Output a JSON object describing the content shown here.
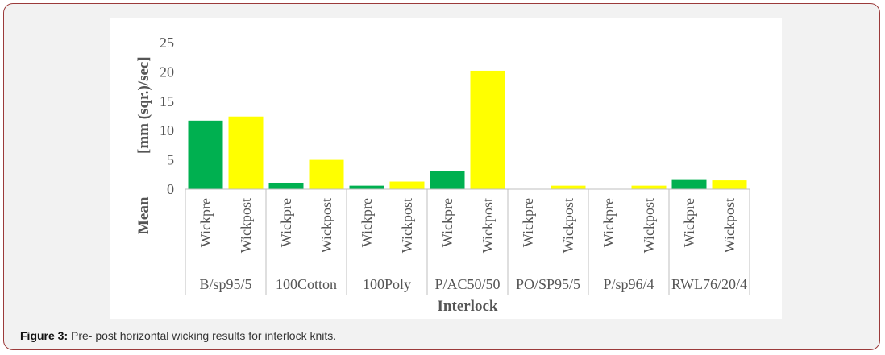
{
  "figure": {
    "caption_label": "Figure 3:",
    "caption_text": " Pre- post horizontal wicking results for interlock knits."
  },
  "chart_data": {
    "type": "bar",
    "groups": [
      "B/sp95/5",
      "100Cotton",
      "100Poly",
      "P/AC50/50",
      "PO/SP95/5",
      "P/sp96/4",
      "RWL76/20/4"
    ],
    "subcategories": [
      "Wickpre",
      "Wickpost"
    ],
    "series": [
      {
        "values": [
          11.7,
          1.1,
          0.6,
          3.1,
          0.0,
          0.0,
          1.7
        ]
      },
      {
        "values": [
          12.4,
          5.0,
          1.3,
          20.2,
          0.6,
          0.6,
          1.5
        ]
      }
    ],
    "colors": {
      "Wickpre": "#00b050",
      "Wickpost": "#ffff00"
    },
    "ylabel": "Mean [mm (sqr.)/sec]",
    "ylabel_parts": [
      "Mean",
      "[mm (sqr.)/sec]"
    ],
    "xlabel": "Interlock",
    "ylim": [
      0,
      25
    ],
    "yticks": [
      0,
      5,
      10,
      15,
      20,
      25
    ],
    "grid": false,
    "legend": false
  }
}
